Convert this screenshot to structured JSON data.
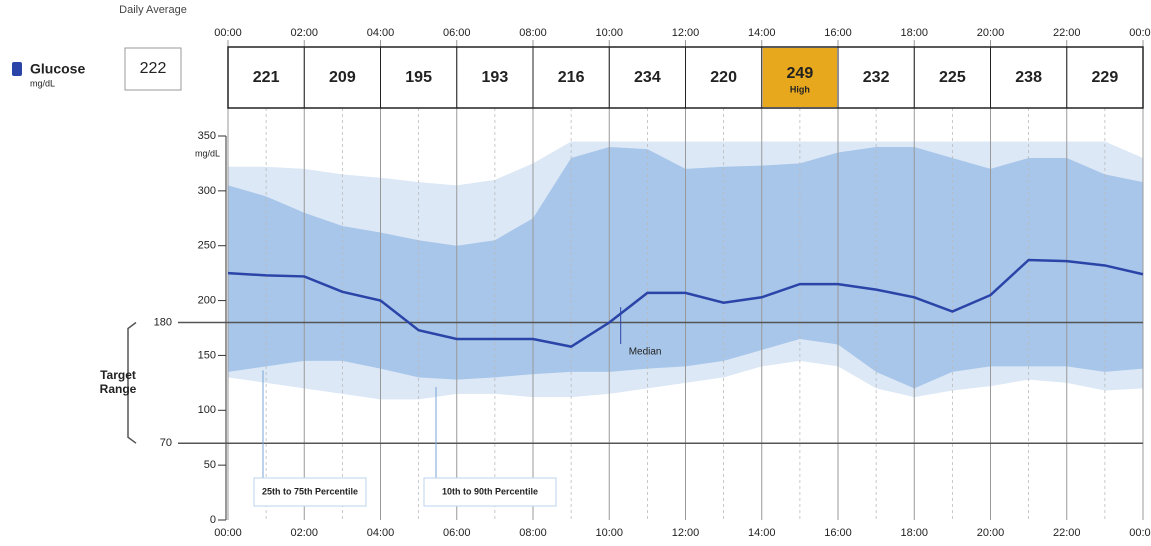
{
  "chart_data": {
    "type": "agp",
    "metric_label": "Glucose",
    "unit": "mg/dL",
    "daily_average_label": "Daily Average",
    "daily_average": 222,
    "block_values": [
      221,
      209,
      195,
      193,
      216,
      234,
      220,
      249,
      232,
      225,
      238,
      229
    ],
    "block_notes": [
      null,
      null,
      null,
      null,
      null,
      null,
      null,
      "High",
      null,
      null,
      null,
      null
    ],
    "highlight_color": "#e8a81e",
    "x": [
      0,
      1,
      2,
      3,
      4,
      5,
      6,
      7,
      8,
      9,
      10,
      11,
      12,
      13,
      14,
      15,
      16,
      17,
      18,
      19,
      20,
      21,
      22,
      23,
      24
    ],
    "xlim": [
      0,
      24
    ],
    "xticks": [
      {
        "value": 0,
        "label": "00:00"
      },
      {
        "value": 2,
        "label": "02:00"
      },
      {
        "value": 4,
        "label": "04:00"
      },
      {
        "value": 6,
        "label": "06:00"
      },
      {
        "value": 8,
        "label": "08:00"
      },
      {
        "value": 10,
        "label": "10:00"
      },
      {
        "value": 12,
        "label": "12:00"
      },
      {
        "value": 14,
        "label": "14:00"
      },
      {
        "value": 16,
        "label": "16:00"
      },
      {
        "value": 18,
        "label": "18:00"
      },
      {
        "value": 20,
        "label": "20:00"
      },
      {
        "value": 22,
        "label": "22:00"
      },
      {
        "value": 24,
        "label": "00:00"
      }
    ],
    "ylim": [
      0,
      350
    ],
    "yticks": [
      0,
      50,
      100,
      150,
      200,
      250,
      300,
      350
    ],
    "target_label": "Target Range",
    "target_range": [
      70,
      180
    ],
    "bands": [
      {
        "name": "10th to 90th Percentile",
        "color": "#dce8f6",
        "upper": [
          322,
          322,
          320,
          315,
          312,
          308,
          305,
          310,
          325,
          345,
          345,
          345,
          345,
          345,
          345,
          345,
          345,
          345,
          345,
          345,
          345,
          345,
          345,
          345,
          330
        ],
        "lower": [
          130,
          125,
          120,
          115,
          110,
          110,
          115,
          115,
          112,
          112,
          115,
          120,
          125,
          130,
          140,
          145,
          140,
          120,
          112,
          118,
          122,
          128,
          125,
          118,
          120
        ]
      },
      {
        "name": "25th to 75th Percentile",
        "color": "#a8c6ea",
        "upper": [
          305,
          295,
          280,
          268,
          262,
          255,
          250,
          255,
          275,
          330,
          340,
          338,
          320,
          322,
          323,
          325,
          335,
          340,
          340,
          330,
          320,
          330,
          330,
          315,
          308
        ],
        "lower": [
          135,
          140,
          145,
          145,
          138,
          130,
          128,
          130,
          133,
          135,
          135,
          138,
          140,
          145,
          155,
          165,
          160,
          135,
          120,
          135,
          140,
          140,
          140,
          135,
          138
        ]
      }
    ],
    "median": {
      "name": "Median",
      "color": "#2a44a8",
      "values": [
        225,
        223,
        222,
        208,
        200,
        173,
        165,
        165,
        165,
        158,
        180,
        207,
        207,
        198,
        203,
        215,
        215,
        210,
        203,
        190,
        205,
        237,
        236,
        232,
        224
      ]
    }
  }
}
